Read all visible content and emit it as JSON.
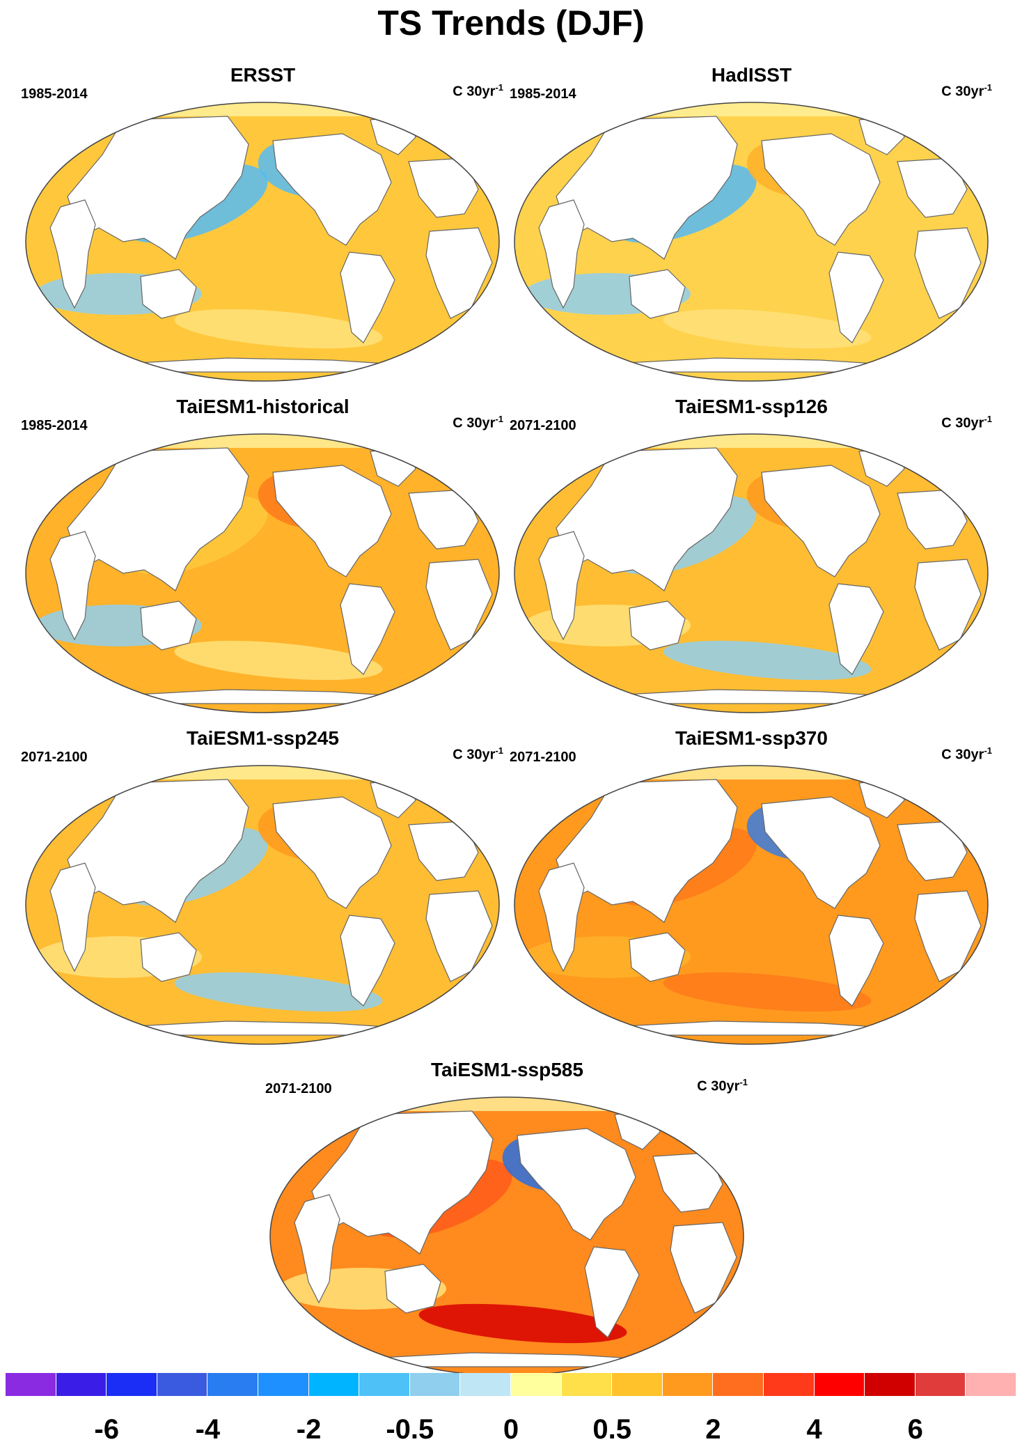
{
  "title": "TS Trends (DJF)",
  "units_base": "C 30yr",
  "units_exp": "-1",
  "panels": [
    {
      "title": "ERSST",
      "period": "1985-2014",
      "ocean": "#ffc83c",
      "anomalies": [
        "#55bbf5",
        "#90cfee",
        "#55bbf5",
        "#ffe27a"
      ]
    },
    {
      "title": "HadISST",
      "period": "1985-2014",
      "ocean": "#ffd24d",
      "anomalies": [
        "#55bbf5",
        "#90cfee",
        "#ffb22a",
        "#ffe27a"
      ]
    },
    {
      "title": "TaiESM1-historical",
      "period": "1985-2014",
      "ocean": "#ffb22a",
      "anomalies": [
        "#ffc83c",
        "#90cfee",
        "#ff7a1a",
        "#ffe27a"
      ]
    },
    {
      "title": "TaiESM1-ssp126",
      "period": "2071-2100",
      "ocean": "#ffbd33",
      "anomalies": [
        "#90cfee",
        "#ffe27a",
        "#ff9a1e",
        "#90cfee"
      ]
    },
    {
      "title": "TaiESM1-ssp245",
      "period": "2071-2100",
      "ocean": "#ffbd33",
      "anomalies": [
        "#90cfee",
        "#ffe27a",
        "#ff9a1e",
        "#90cfee"
      ]
    },
    {
      "title": "TaiESM1-ssp370",
      "period": "2071-2100",
      "ocean": "#ff9a1e",
      "anomalies": [
        "#ff7a1a",
        "#ffb22a",
        "#3a7de0",
        "#ff7a1a"
      ]
    },
    {
      "title": "TaiESM1-ssp585",
      "period": "2071-2100",
      "ocean": "#ff8a1e",
      "anomalies": [
        "#ff5a1a",
        "#ffe27a",
        "#2a6fe0",
        "#d80000"
      ]
    }
  ],
  "colorbar": {
    "colors": [
      "#8a2be2",
      "#3a1ee8",
      "#1a2ef5",
      "#3a5be0",
      "#2a7df0",
      "#1e90ff",
      "#00b4ff",
      "#4ec2f7",
      "#90cfee",
      "#bfe6f5",
      "#ffff9e",
      "#ffe04a",
      "#ffc22a",
      "#ff9a1e",
      "#ff6e1e",
      "#ff3a1a",
      "#ff0000",
      "#d00000",
      "#e03c3c",
      "#ffb0b0"
    ],
    "labels": [
      "-6",
      "-4",
      "-2",
      "-0.5",
      "0",
      "0.5",
      "2",
      "4",
      "6"
    ]
  }
}
